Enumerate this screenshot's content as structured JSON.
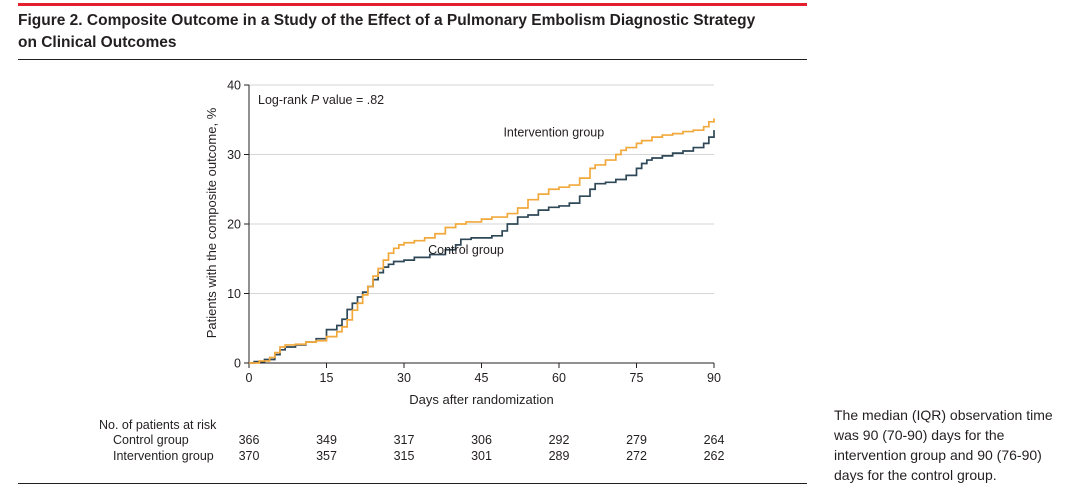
{
  "figure": {
    "title": "Figure 2. Composite Outcome in a Study of the Effect of a Pulmonary Embolism Diagnostic Strategy on Clinical Outcomes",
    "note": "The median (IQR) observation time was 90 (70-90) days for the intervention group and 90 (76-90) days for the control group."
  },
  "chart_data": {
    "type": "line",
    "xlabel": "Days after randomization",
    "ylabel": "Patients with the composite outcome, %",
    "xlim": [
      0,
      90
    ],
    "ylim": [
      0,
      40
    ],
    "xticks": [
      0,
      15,
      30,
      45,
      60,
      75,
      90
    ],
    "yticks": [
      0,
      10,
      20,
      30,
      40
    ],
    "grid": "horizontal",
    "annotation": {
      "prefix": "Log-rank ",
      "italic": "P",
      "suffix": " value = .82"
    },
    "series": [
      {
        "name": "Control group",
        "color": "#2f4858",
        "x": [
          0,
          1,
          3,
          5,
          6,
          7,
          9,
          11,
          13,
          15,
          17,
          18,
          19,
          20,
          21,
          22,
          23,
          24,
          25,
          26,
          27,
          28,
          29,
          30,
          32,
          35,
          38,
          40,
          41,
          43,
          45,
          47,
          49,
          50,
          52,
          54,
          56,
          58,
          60,
          62,
          64,
          66,
          67,
          69,
          71,
          73,
          75,
          76,
          77,
          78,
          80,
          82,
          84,
          86,
          88,
          89,
          90
        ],
        "y": [
          0,
          0.2,
          0.5,
          1.2,
          1.9,
          2.3,
          2.6,
          3.0,
          3.5,
          4.8,
          5.4,
          6.3,
          7.7,
          8.6,
          9.5,
          10.2,
          11.0,
          12.0,
          13.0,
          13.8,
          14.2,
          14.6,
          14.6,
          14.8,
          15.2,
          15.6,
          16.3,
          17.0,
          17.8,
          18.0,
          18.0,
          18.3,
          19.0,
          20.0,
          21.0,
          21.3,
          22.0,
          22.4,
          22.6,
          23.0,
          24.0,
          25.0,
          25.8,
          26.0,
          26.4,
          27.0,
          28.0,
          28.7,
          29.2,
          29.5,
          29.8,
          30.2,
          30.5,
          31.0,
          31.6,
          32.5,
          33.5
        ]
      },
      {
        "name": "Intervention group",
        "color": "#f2a93b",
        "x": [
          0,
          2,
          4,
          5,
          6,
          7,
          9,
          11,
          13,
          15,
          17,
          18,
          19,
          20,
          21,
          22,
          23,
          24,
          25,
          26,
          27,
          28,
          29,
          30,
          32,
          34,
          36,
          38,
          40,
          42,
          45,
          47,
          50,
          52,
          54,
          56,
          58,
          60,
          62,
          64,
          66,
          67,
          69,
          71,
          72,
          73,
          75,
          76,
          78,
          80,
          82,
          84,
          86,
          88,
          89,
          90
        ],
        "y": [
          0,
          0.3,
          0.8,
          1.5,
          2.3,
          2.6,
          2.7,
          3.0,
          3.2,
          3.8,
          4.5,
          5.2,
          6.2,
          7.6,
          8.6,
          9.8,
          11.0,
          12.5,
          13.6,
          14.8,
          15.8,
          16.5,
          17.0,
          17.3,
          17.6,
          18.0,
          18.6,
          19.5,
          20.0,
          20.3,
          20.7,
          21.0,
          21.5,
          22.3,
          23.5,
          24.3,
          25.0,
          25.3,
          25.6,
          26.6,
          28.0,
          28.5,
          29.2,
          30.0,
          30.6,
          31.0,
          31.6,
          32.0,
          32.5,
          32.8,
          33.0,
          33.3,
          33.5,
          34.0,
          34.7,
          35.2
        ]
      }
    ],
    "series_labels": [
      {
        "series": "Intervention group",
        "text": "Intervention group",
        "x": 59,
        "y": 32.6
      },
      {
        "series": "Control group",
        "text": "Control group",
        "x": 42,
        "y": 15.7
      }
    ],
    "risk_table": {
      "header": "No. of patients at risk",
      "days": [
        0,
        15,
        30,
        45,
        60,
        75,
        90
      ],
      "rows": [
        {
          "label": "Control group",
          "values": [
            366,
            349,
            317,
            306,
            292,
            279,
            264
          ]
        },
        {
          "label": "Intervention group",
          "values": [
            370,
            357,
            315,
            301,
            289,
            272,
            262
          ]
        }
      ]
    }
  }
}
